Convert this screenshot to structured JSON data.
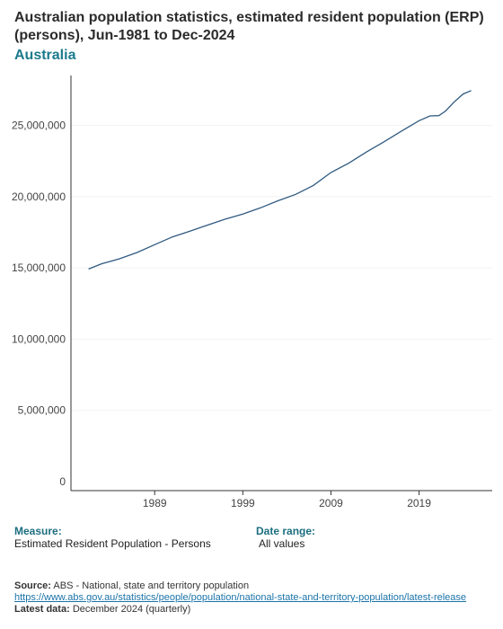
{
  "title": "Australian population statistics, estimated resident population (ERP) (persons), Jun-1981 to Dec-2024",
  "subtitle": "Australia",
  "colors": {
    "line": "#2f5a80",
    "axis": "#333333",
    "subtitle": "#1c7a8c"
  },
  "meta": {
    "measure_label": "Measure:",
    "measure_value": "Estimated Resident Population - Persons",
    "date_range_label": "Date range:",
    "date_range_value": "All values"
  },
  "source": {
    "label": "Source:",
    "text": "ABS - National, state and territory population",
    "url": "https://www.abs.gov.au/statistics/people/population/national-state-and-territory-population/latest-release",
    "latest_label": "Latest data:",
    "latest_value": "December 2024 (quarterly)"
  },
  "chart_data": {
    "type": "line",
    "x": [
      1981.5,
      1983,
      1985,
      1987,
      1989,
      1991,
      1993,
      1995,
      1997,
      1999,
      2001,
      2003,
      2005,
      2007,
      2009,
      2011,
      2013,
      2015,
      2017,
      2019,
      2020.25,
      2021.25,
      2022,
      2023,
      2024,
      2024.92
    ],
    "series": [
      {
        "values": [
          14920000,
          15290000,
          15640000,
          16080000,
          16630000,
          17170000,
          17580000,
          18000000,
          18420000,
          18780000,
          19210000,
          19710000,
          20160000,
          20780000,
          21690000,
          22340000,
          23120000,
          23840000,
          24600000,
          25330000,
          25660000,
          25680000,
          26000000,
          26650000,
          27200000,
          27440000
        ]
      }
    ],
    "xticks": [
      "1989",
      "1999",
      "2009",
      "2019"
    ],
    "xtick_values": [
      1989,
      1999,
      2009,
      2019
    ],
    "yticks": [
      "0",
      "5,000,000",
      "10,000,000",
      "15,000,000",
      "20,000,000",
      "25,000,000"
    ],
    "ytick_values": [
      0,
      5000000,
      10000000,
      15000000,
      20000000,
      25000000
    ],
    "xlim": [
      1979.5,
      2027.3
    ],
    "ylim": [
      0,
      28500000
    ],
    "grid": false
  }
}
